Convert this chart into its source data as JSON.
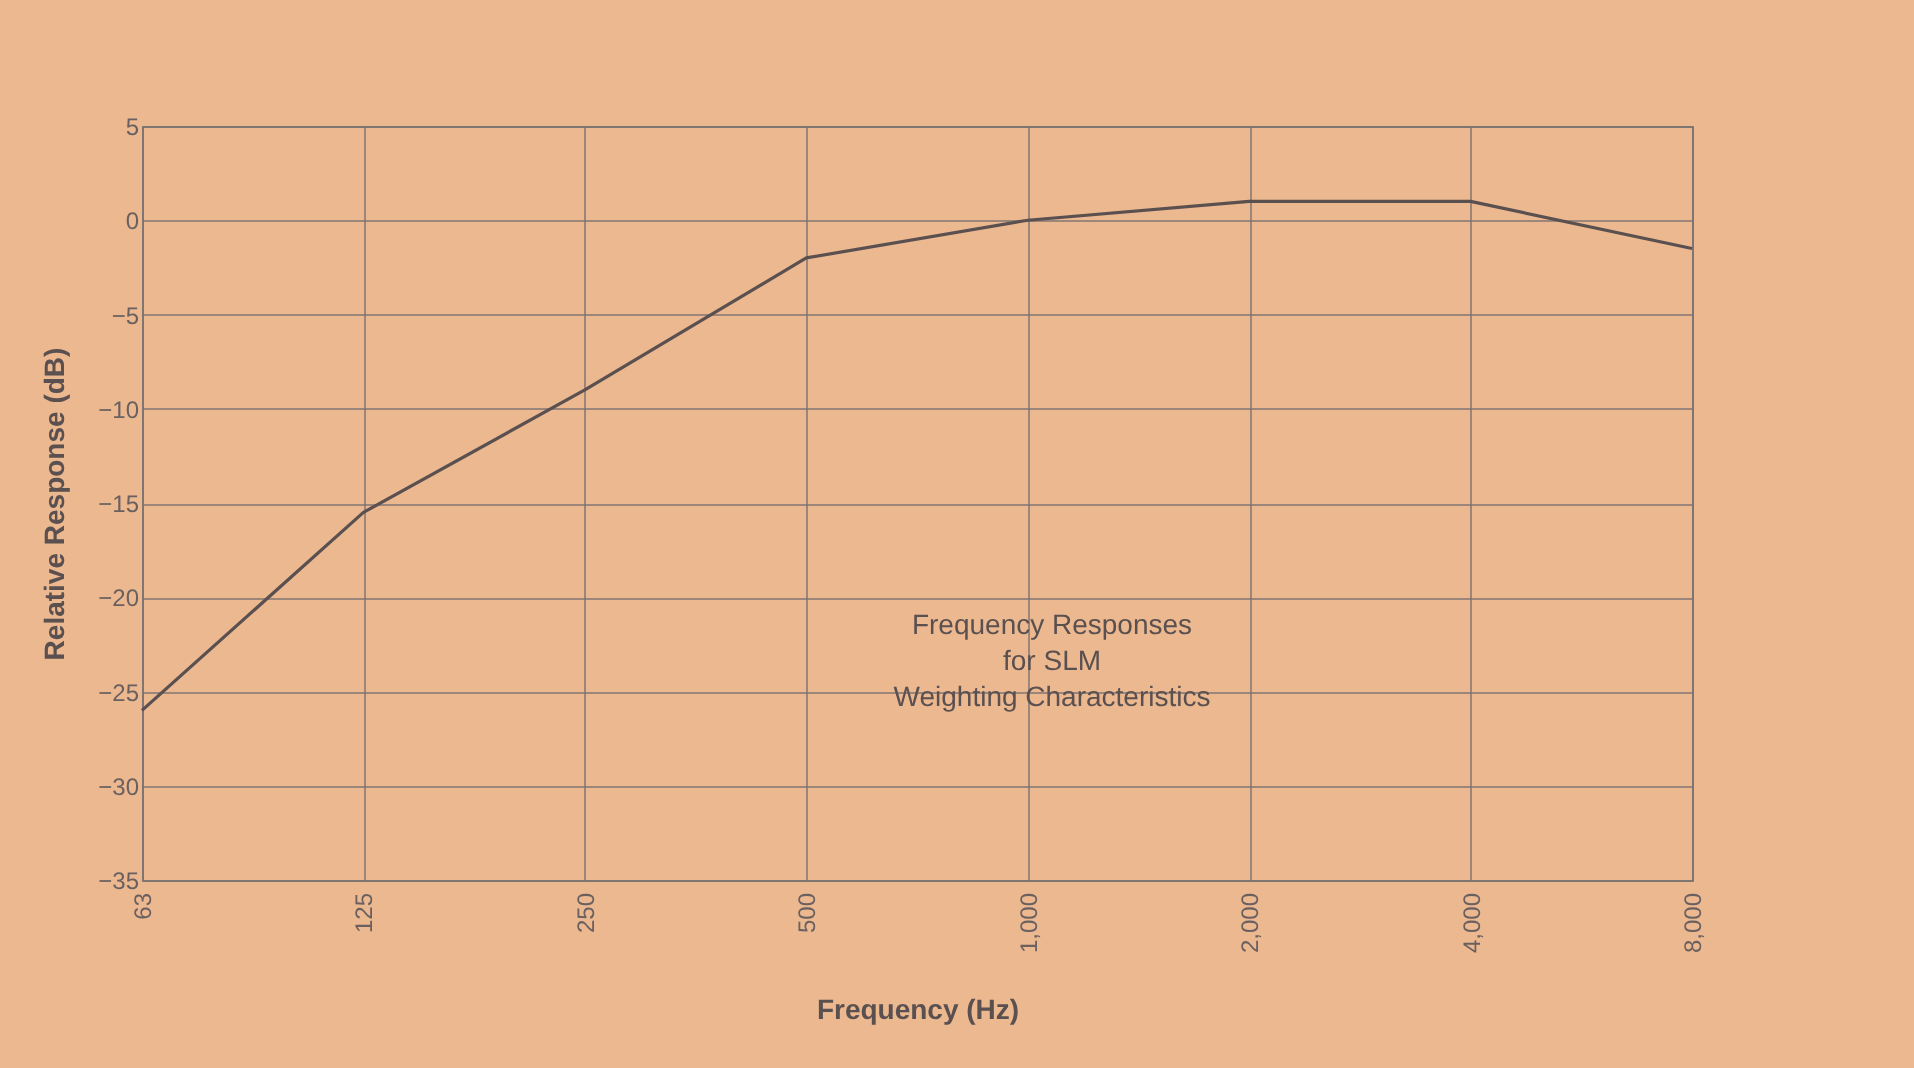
{
  "chart_data": {
    "type": "line",
    "xlabel": "Frequency (Hz)",
    "ylabel": "Relative Response (dB)",
    "categories": [
      "63",
      "125",
      "250",
      "500",
      "1,000",
      "2,000",
      "4,000",
      "8,000"
    ],
    "series": [
      {
        "color": "#5a5050",
        "values": [
          -26,
          -15.5,
          -9,
          -2,
          0,
          1,
          1,
          -1.5
        ]
      }
    ],
    "ylim": [
      -35,
      5
    ],
    "yticks": [
      -35,
      -30,
      -25,
      -20,
      -15,
      -10,
      -5,
      0,
      5
    ],
    "grid": true,
    "marker": "none",
    "line_style": "solid",
    "annotations": [
      "Frequency Responses\nfor SLM\nWeighting Characteristics"
    ]
  }
}
